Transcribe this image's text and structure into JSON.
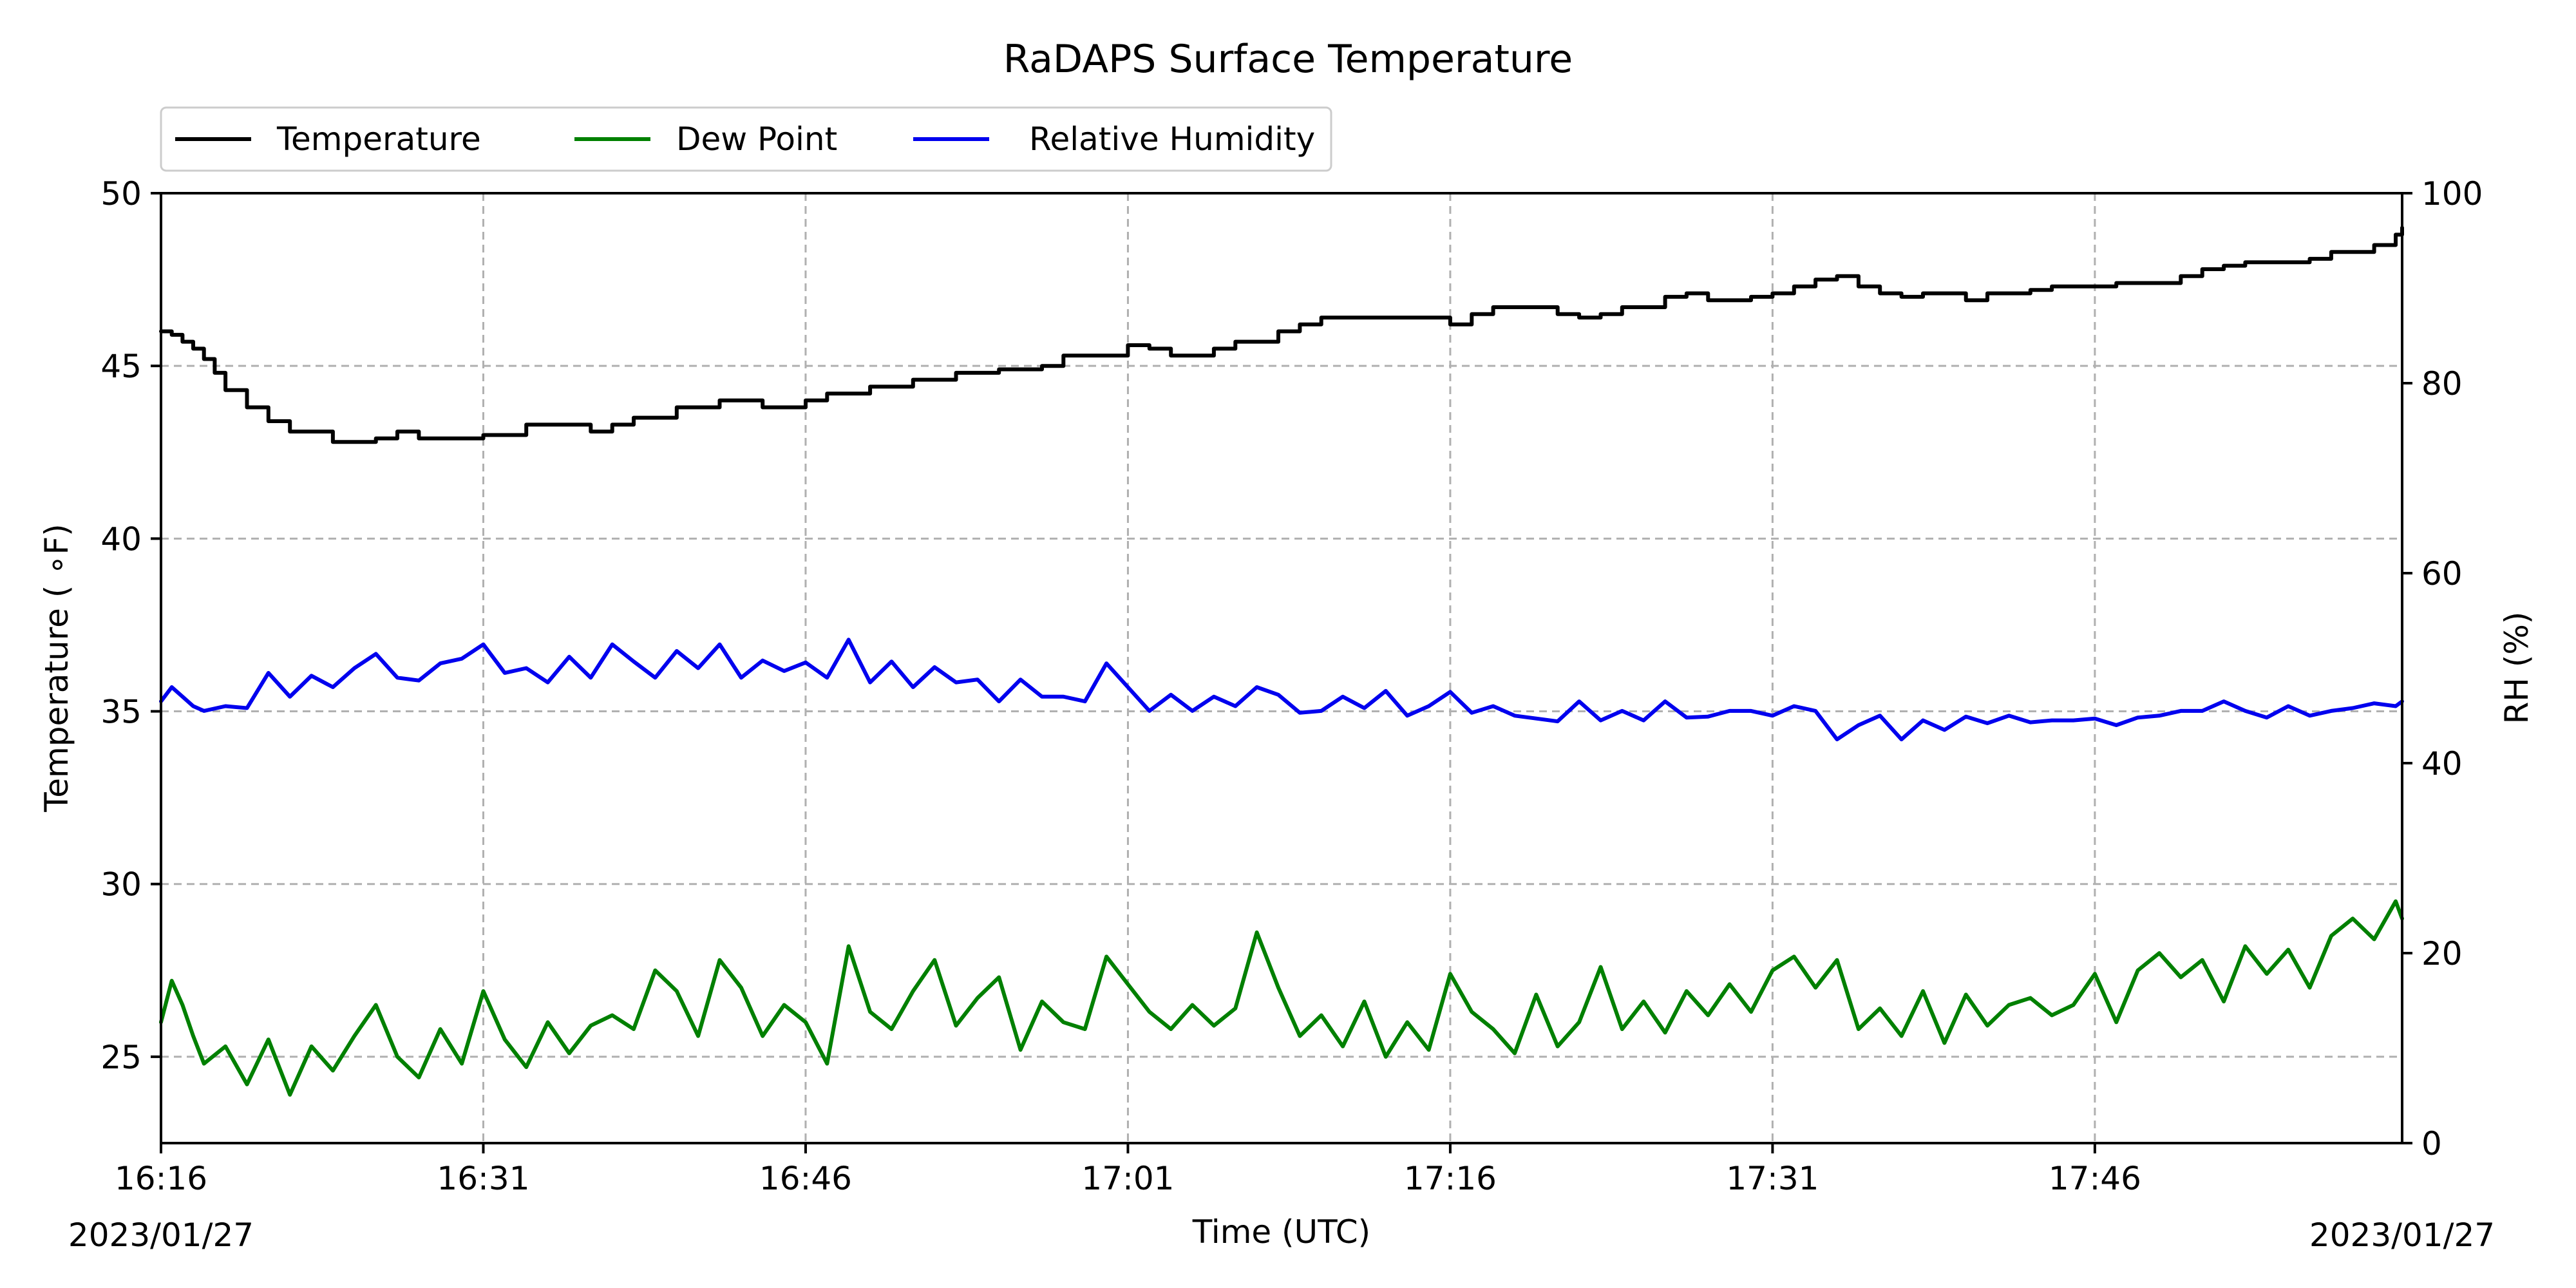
{
  "chart_data": {
    "type": "line",
    "title": "RaDAPS Surface Temperature",
    "xlabel": "Time (UTC)",
    "ylabel": "Temperature ( ∘F)",
    "ylabel_right": "RH (%)",
    "x_start_label": "16:16",
    "x_tick_labels": [
      "16:16",
      "16:31",
      "16:46",
      "17:01",
      "17:16",
      "17:31",
      "17:46"
    ],
    "x_tick_minutes": [
      0,
      15,
      30,
      45,
      60,
      75,
      90
    ],
    "x_range_minutes": [
      0,
      104.3
    ],
    "date_left": "2023/01/27",
    "date_right": "2023/01/27",
    "ylim_left": [
      22.5,
      50
    ],
    "yticks_left": [
      25,
      30,
      35,
      40,
      45,
      50
    ],
    "ylim_right": [
      0,
      100
    ],
    "yticks_right": [
      0,
      20,
      40,
      60,
      80,
      100
    ],
    "grid": true,
    "legend_position": "top-left",
    "series": [
      {
        "name": "Temperature",
        "axis": "left",
        "color": "#000000",
        "step": true,
        "x": [
          0,
          0.5,
          1,
          1.5,
          2,
          2.5,
          3,
          4,
          5,
          6,
          8,
          10,
          11,
          12,
          15,
          17,
          18,
          20,
          21,
          22,
          24,
          26,
          28,
          30,
          31,
          33,
          35,
          37,
          39,
          40,
          41,
          42,
          45,
          46,
          47,
          49,
          50,
          52,
          53,
          54,
          56,
          57,
          59,
          60,
          61,
          62,
          64,
          65,
          66,
          67,
          68,
          70,
          71,
          72,
          73,
          74,
          75,
          76,
          77,
          78,
          79,
          80,
          81,
          82,
          83,
          84,
          85,
          87,
          88,
          90,
          91,
          93,
          94,
          95,
          96,
          97,
          98,
          100,
          101,
          102,
          103,
          104,
          104.3
        ],
        "y": [
          46,
          45.9,
          45.7,
          45.5,
          45.2,
          44.8,
          44.3,
          43.8,
          43.4,
          43.1,
          42.8,
          42.9,
          43.1,
          42.9,
          43.0,
          43.3,
          43.3,
          43.1,
          43.3,
          43.5,
          43.8,
          44.0,
          43.8,
          44.0,
          44.2,
          44.4,
          44.6,
          44.8,
          44.9,
          44.9,
          45.0,
          45.3,
          45.6,
          45.5,
          45.3,
          45.5,
          45.7,
          46.0,
          46.2,
          46.4,
          46.4,
          46.4,
          46.4,
          46.2,
          46.5,
          46.7,
          46.7,
          46.5,
          46.4,
          46.5,
          46.7,
          47.0,
          47.1,
          46.9,
          46.9,
          47.0,
          47.1,
          47.3,
          47.5,
          47.6,
          47.3,
          47.1,
          47.0,
          47.1,
          47.1,
          46.9,
          47.1,
          47.2,
          47.3,
          47.3,
          47.4,
          47.4,
          47.6,
          47.8,
          47.9,
          48.0,
          48.0,
          48.1,
          48.3,
          48.3,
          48.5,
          48.8,
          49.0
        ]
      },
      {
        "name": "Dew Point",
        "axis": "left",
        "color": "#008000",
        "x": [
          0,
          0.5,
          1,
          1.5,
          2,
          3,
          4,
          5,
          6,
          7,
          8,
          9,
          10,
          11,
          12,
          13,
          14,
          15,
          16,
          17,
          18,
          19,
          20,
          21,
          22,
          23,
          24,
          25,
          26,
          27,
          28,
          29,
          30,
          31,
          32,
          33,
          34,
          35,
          36,
          37,
          38,
          39,
          40,
          41,
          42,
          43,
          44,
          45,
          46,
          47,
          48,
          49,
          50,
          51,
          52,
          53,
          54,
          55,
          56,
          57,
          58,
          59,
          60,
          61,
          62,
          63,
          64,
          65,
          66,
          67,
          68,
          69,
          70,
          71,
          72,
          73,
          74,
          75,
          76,
          77,
          78,
          79,
          80,
          81,
          82,
          83,
          84,
          85,
          86,
          87,
          88,
          89,
          90,
          91,
          92,
          93,
          94,
          95,
          96,
          97,
          98,
          99,
          100,
          101,
          102,
          103,
          104,
          104.3
        ],
        "y": [
          26.0,
          27.2,
          26.5,
          25.6,
          24.8,
          25.3,
          24.2,
          25.5,
          23.9,
          25.3,
          24.6,
          25.6,
          26.5,
          25.0,
          24.4,
          25.8,
          24.8,
          26.9,
          25.5,
          24.7,
          26.0,
          25.1,
          25.9,
          26.2,
          25.8,
          27.5,
          26.9,
          25.6,
          27.8,
          27.0,
          25.6,
          26.5,
          26.0,
          24.8,
          28.2,
          26.3,
          25.8,
          26.9,
          27.8,
          25.9,
          26.7,
          27.3,
          25.2,
          26.6,
          26.0,
          25.8,
          27.9,
          27.1,
          26.3,
          25.8,
          26.5,
          25.9,
          26.4,
          28.6,
          27.0,
          25.6,
          26.2,
          25.3,
          26.6,
          25.0,
          26.0,
          25.2,
          27.4,
          26.3,
          25.8,
          25.1,
          26.8,
          25.3,
          26.0,
          27.6,
          25.8,
          26.6,
          25.7,
          26.9,
          26.2,
          27.1,
          26.3,
          27.5,
          27.9,
          27.0,
          27.8,
          25.8,
          26.4,
          25.6,
          26.9,
          25.4,
          26.8,
          25.9,
          26.5,
          26.7,
          26.2,
          26.5,
          27.4,
          26.0,
          27.5,
          28.0,
          27.3,
          27.8,
          26.6,
          28.2,
          27.4,
          28.1,
          27.0,
          28.5,
          29.0,
          28.4,
          29.5,
          29.0
        ]
      },
      {
        "name": "Relative Humidity",
        "axis": "right",
        "color": "#0000ee",
        "x": [
          0,
          0.5,
          1,
          1.5,
          2,
          3,
          4,
          5,
          6,
          7,
          8,
          9,
          10,
          11,
          12,
          13,
          14,
          15,
          16,
          17,
          18,
          19,
          20,
          21,
          22,
          23,
          24,
          25,
          26,
          27,
          28,
          29,
          30,
          31,
          32,
          33,
          34,
          35,
          36,
          37,
          38,
          39,
          40,
          41,
          42,
          43,
          44,
          45,
          46,
          47,
          48,
          49,
          50,
          51,
          52,
          53,
          54,
          55,
          56,
          57,
          58,
          59,
          60,
          61,
          62,
          63,
          64,
          65,
          66,
          67,
          68,
          69,
          70,
          71,
          72,
          73,
          74,
          75,
          76,
          77,
          78,
          79,
          80,
          81,
          82,
          83,
          84,
          85,
          86,
          87,
          88,
          89,
          90,
          91,
          92,
          93,
          94,
          95,
          96,
          97,
          98,
          99,
          100,
          101,
          102,
          103,
          104,
          104.3
        ],
        "y": [
          46.5,
          48.0,
          47.0,
          46.0,
          45.5,
          46.0,
          45.8,
          49.5,
          47.0,
          49.2,
          48.0,
          50.0,
          51.5,
          49.0,
          48.7,
          50.5,
          51.0,
          52.5,
          49.5,
          50.0,
          48.5,
          51.2,
          49.0,
          52.5,
          50.7,
          49.0,
          51.8,
          50.0,
          52.5,
          49.0,
          50.8,
          49.7,
          50.6,
          49.0,
          53.0,
          48.5,
          50.7,
          48.0,
          50.1,
          48.5,
          48.8,
          46.5,
          48.8,
          47.0,
          47.0,
          46.5,
          50.5,
          48.0,
          45.5,
          47.2,
          45.5,
          47.0,
          46.0,
          48.0,
          47.2,
          45.3,
          45.5,
          47.0,
          45.8,
          47.6,
          45.0,
          46.0,
          47.5,
          45.3,
          46.0,
          45.0,
          44.7,
          44.4,
          46.5,
          44.5,
          45.5,
          44.5,
          46.5,
          44.8,
          44.9,
          45.5,
          45.5,
          45.0,
          46.0,
          45.5,
          42.5,
          44.0,
          45.0,
          42.5,
          44.5,
          43.5,
          44.9,
          44.2,
          45.0,
          44.3,
          44.5,
          44.5,
          44.7,
          44.0,
          44.8,
          45.0,
          45.5,
          45.5,
          46.5,
          45.5,
          44.8,
          46.0,
          45.0,
          45.5,
          45.8,
          46.3,
          46.0,
          46.5
        ]
      }
    ]
  }
}
